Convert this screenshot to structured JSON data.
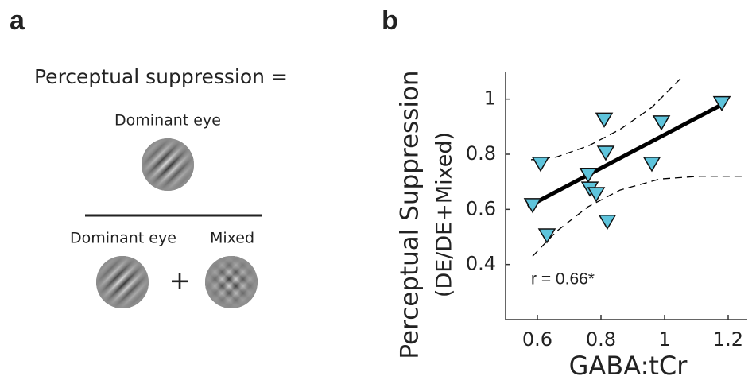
{
  "panel_a": {
    "label": "a",
    "title": "Perceptual suppression =",
    "numerator": "Dominant eye",
    "denominator": [
      "Dominant eye",
      "Mixed"
    ],
    "operator": "+"
  },
  "chart_data": {
    "type": "scatter",
    "panel_label": "b",
    "x_label": "GABA:tCr",
    "y_label": [
      "Perceptual Suppression",
      "(DE/DE+Mixed)"
    ],
    "annotation": "r = 0.66*",
    "xlim": [
      0.5,
      1.26
    ],
    "ylim": [
      0.2,
      1.1
    ],
    "xticks": [
      0.6,
      0.8,
      1,
      1.2
    ],
    "yticks": [
      0.4,
      0.6,
      0.8,
      1
    ],
    "series": [
      {
        "kind": "points",
        "marker": "triangle-down",
        "color": "#5ec4dc",
        "x": [
          1.18,
          0.81,
          0.99,
          0.815,
          0.61,
          0.96,
          0.76,
          0.765,
          0.785,
          0.585,
          0.82,
          0.63
        ],
        "values": [
          0.99,
          0.93,
          0.92,
          0.81,
          0.77,
          0.77,
          0.73,
          0.68,
          0.66,
          0.62,
          0.56,
          0.51
        ]
      },
      {
        "kind": "fit",
        "color": "#000000",
        "x": [
          0.57,
          1.18
        ],
        "values": [
          0.61,
          0.98
        ]
      },
      {
        "kind": "band",
        "color": "#000000",
        "x": [
          0.58,
          0.66,
          0.76,
          0.86,
          0.96,
          1.055
        ],
        "values": [
          0.78,
          0.79,
          0.83,
          0.89,
          0.97,
          1.08
        ]
      },
      {
        "kind": "band",
        "color": "#000000",
        "x": [
          0.585,
          0.66,
          0.76,
          0.86,
          0.985,
          1.11,
          1.25
        ],
        "values": [
          0.43,
          0.52,
          0.61,
          0.67,
          0.71,
          0.72,
          0.72
        ]
      }
    ]
  }
}
